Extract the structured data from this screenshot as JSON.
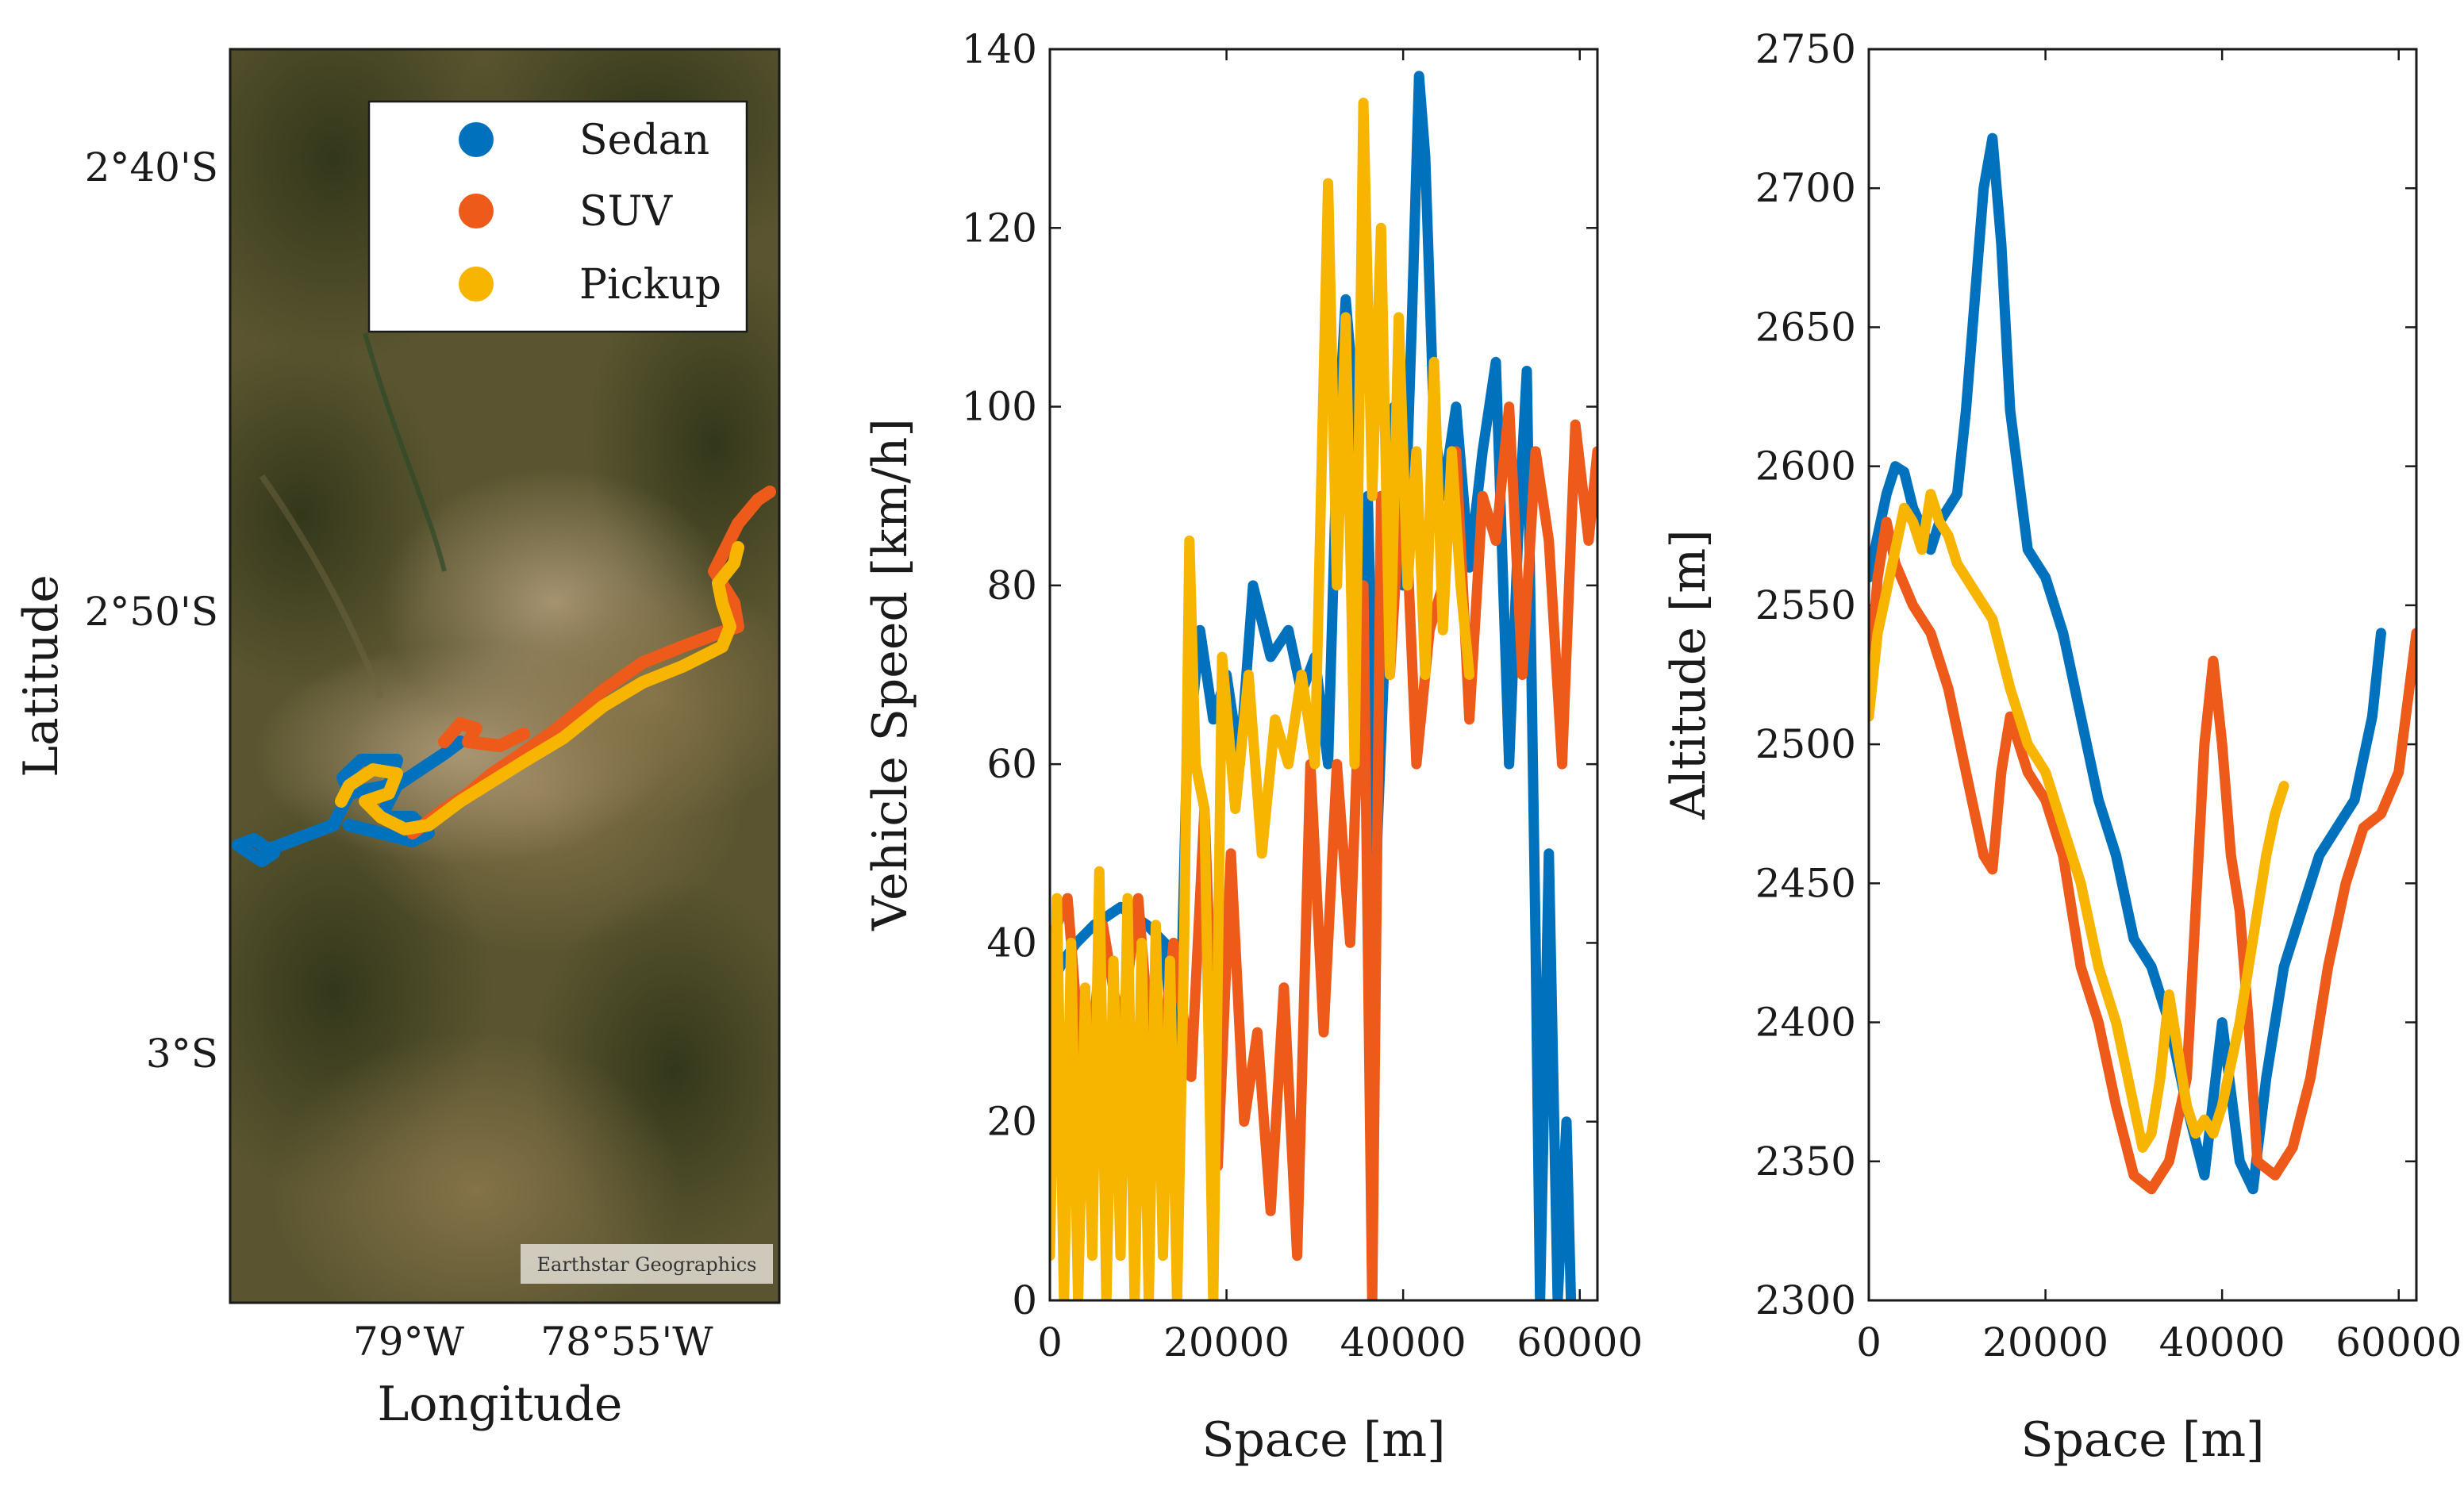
{
  "colors": {
    "sedan": "#0072BD",
    "suv": "#EE5A1A",
    "pickup": "#F7B500",
    "map_dark": "#4a4a24",
    "map_mid": "#7a6a42",
    "map_urban": "#a08c6a"
  },
  "map_panel": {
    "xlabel": "Longitude",
    "ylabel": "Latitude",
    "x_ticks": [
      "79°W",
      "78°55'W"
    ],
    "y_ticks": [
      "2°40'S",
      "2°50'S",
      "3°S"
    ],
    "attribution": "Earthstar Geographics",
    "legend": [
      "Sedan",
      "SUV",
      "Pickup"
    ]
  },
  "chart_data": [
    {
      "type": "line",
      "title": "",
      "xlabel": "Space [m]",
      "ylabel": "Vehicle Speed [km/h]",
      "xlim": [
        0,
        62000
      ],
      "ylim": [
        0,
        140
      ],
      "x_ticks": [
        "0",
        "20000",
        "40000",
        "60000"
      ],
      "y_ticks": [
        "0",
        "20",
        "40",
        "60",
        "80",
        "100",
        "120",
        "140"
      ],
      "series": [
        {
          "name": "Sedan",
          "x": [
            0,
            1500,
            3000,
            5000,
            8000,
            11000,
            13000,
            14500,
            15500,
            17000,
            18500,
            20000,
            21500,
            23000,
            25000,
            27000,
            28500,
            30000,
            31500,
            32500,
            33500,
            34500,
            35000,
            36000,
            37000,
            38000,
            39000,
            40000,
            41000,
            41800,
            42500,
            43500,
            44500,
            46000,
            47500,
            49000,
            50500,
            52000,
            53000,
            54000,
            55000,
            55500,
            56500,
            57500,
            58500,
            59000
          ],
          "values": [
            35,
            38,
            40,
            42,
            44,
            42,
            40,
            20,
            60,
            75,
            65,
            70,
            60,
            80,
            72,
            75,
            68,
            72,
            60,
            95,
            112,
            100,
            70,
            90,
            50,
            75,
            100,
            80,
            110,
            137,
            128,
            98,
            90,
            100,
            82,
            95,
            105,
            60,
            85,
            104,
            40,
            0,
            50,
            0,
            20,
            0
          ]
        },
        {
          "name": "SUV",
          "x": [
            0,
            2000,
            4000,
            6000,
            8000,
            10000,
            12000,
            14000,
            16000,
            17500,
            19000,
            20500,
            22000,
            23500,
            25000,
            26500,
            28000,
            29500,
            31000,
            32500,
            34000,
            35500,
            36500,
            37500,
            38500,
            40000,
            41500,
            43000,
            44500,
            46000,
            47500,
            49000,
            50500,
            52000,
            53500,
            55000,
            56500,
            58000,
            59500,
            61000,
            62000
          ],
          "values": [
            40,
            45,
            20,
            42,
            30,
            45,
            20,
            40,
            25,
            55,
            15,
            50,
            20,
            30,
            10,
            35,
            5,
            60,
            30,
            60,
            40,
            80,
            0,
            90,
            70,
            95,
            60,
            75,
            80,
            95,
            65,
            90,
            85,
            100,
            70,
            95,
            85,
            60,
            98,
            85,
            95
          ]
        },
        {
          "name": "Pickup",
          "x": [
            0,
            800,
            1600,
            2400,
            3200,
            4000,
            4800,
            5600,
            6400,
            7200,
            8000,
            8800,
            9600,
            10400,
            11200,
            12000,
            12800,
            13600,
            14400,
            15200,
            15800,
            16500,
            17500,
            18500,
            19500,
            21000,
            22500,
            24000,
            25500,
            27000,
            28500,
            30000,
            31500,
            32500,
            33500,
            34500,
            35500,
            36500,
            37500,
            38500,
            39500,
            40500,
            41500,
            42500,
            43500,
            44500,
            45500,
            46500,
            47500
          ],
          "values": [
            5,
            45,
            0,
            40,
            0,
            35,
            5,
            48,
            0,
            38,
            5,
            45,
            0,
            40,
            0,
            42,
            5,
            38,
            0,
            40,
            85,
            60,
            55,
            0,
            72,
            55,
            70,
            50,
            65,
            60,
            70,
            60,
            125,
            80,
            110,
            60,
            134,
            90,
            120,
            70,
            110,
            80,
            95,
            70,
            105,
            75,
            95,
            80,
            70
          ]
        }
      ]
    },
    {
      "type": "line",
      "title": "",
      "xlabel": "Space [m]",
      "ylabel": "Altitude [m]",
      "xlim": [
        0,
        62000
      ],
      "ylim": [
        2300,
        2750
      ],
      "x_ticks": [
        "0",
        "20000",
        "40000",
        "60000"
      ],
      "y_ticks": [
        "2300",
        "2350",
        "2400",
        "2450",
        "2500",
        "2550",
        "2600",
        "2650",
        "2700",
        "2750"
      ],
      "series": [
        {
          "name": "Sedan",
          "x": [
            0,
            1000,
            2000,
            3000,
            4000,
            5000,
            6000,
            7000,
            8000,
            9000,
            10000,
            11000,
            12000,
            13000,
            14000,
            15000,
            16000,
            18000,
            20000,
            22000,
            24000,
            26000,
            28000,
            30000,
            32000,
            34000,
            36000,
            38000,
            40000,
            42000,
            43500,
            45000,
            47000,
            49000,
            51000,
            53000,
            55000,
            57000,
            58000
          ],
          "values": [
            2560,
            2575,
            2590,
            2600,
            2598,
            2585,
            2578,
            2570,
            2580,
            2585,
            2590,
            2620,
            2660,
            2700,
            2718,
            2680,
            2620,
            2570,
            2560,
            2540,
            2510,
            2480,
            2460,
            2430,
            2420,
            2400,
            2370,
            2345,
            2400,
            2350,
            2340,
            2380,
            2420,
            2440,
            2460,
            2470,
            2480,
            2510,
            2540
          ]
        },
        {
          "name": "SUV",
          "x": [
            0,
            1000,
            2000,
            3000,
            5000,
            7000,
            9000,
            11000,
            13000,
            14000,
            15000,
            16000,
            17000,
            18000,
            20000,
            22000,
            24000,
            26000,
            28000,
            30000,
            32000,
            34000,
            36000,
            37000,
            38000,
            39000,
            40000,
            41000,
            42000,
            43000,
            44000,
            46000,
            48000,
            50000,
            52000,
            54000,
            56000,
            58000,
            60000,
            62000
          ],
          "values": [
            2520,
            2560,
            2580,
            2565,
            2550,
            2540,
            2520,
            2490,
            2460,
            2455,
            2490,
            2510,
            2500,
            2490,
            2480,
            2460,
            2420,
            2400,
            2370,
            2345,
            2340,
            2350,
            2380,
            2440,
            2500,
            2530,
            2500,
            2460,
            2440,
            2400,
            2350,
            2345,
            2355,
            2380,
            2420,
            2450,
            2470,
            2475,
            2490,
            2540
          ]
        },
        {
          "name": "Pickup",
          "x": [
            0,
            1000,
            2000,
            3000,
            4000,
            5000,
            6000,
            7000,
            8000,
            9000,
            10000,
            11000,
            12000,
            13000,
            14000,
            16000,
            18000,
            20000,
            22000,
            24000,
            26000,
            28000,
            30000,
            31000,
            32000,
            33000,
            34000,
            35000,
            36000,
            37000,
            38000,
            39000,
            40000,
            41000,
            42000,
            43000,
            44000,
            45000,
            46000,
            47000
          ],
          "values": [
            2510,
            2540,
            2555,
            2570,
            2585,
            2580,
            2570,
            2590,
            2580,
            2575,
            2565,
            2560,
            2555,
            2550,
            2545,
            2520,
            2500,
            2490,
            2470,
            2450,
            2420,
            2400,
            2370,
            2355,
            2360,
            2380,
            2410,
            2390,
            2370,
            2360,
            2365,
            2360,
            2370,
            2385,
            2400,
            2420,
            2440,
            2460,
            2475,
            2485
          ]
        }
      ]
    }
  ]
}
